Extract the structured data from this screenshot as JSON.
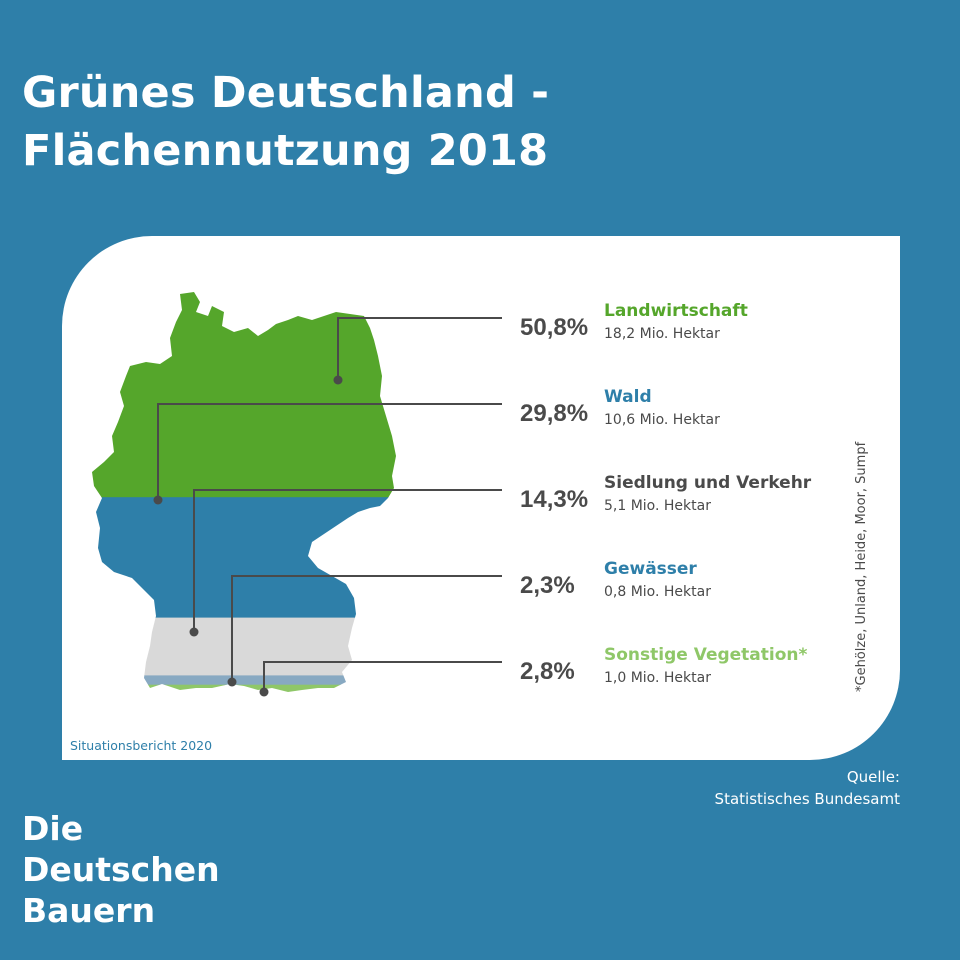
{
  "title": {
    "line1": "Grünes Deutschland -",
    "line2": "Flächennutzung 2018"
  },
  "chart_data": {
    "type": "pie",
    "title": "Grünes Deutschland - Flächennutzung 2018",
    "categories": [
      "Landwirtschaft",
      "Wald",
      "Siedlung und Verkehr",
      "Gewässer",
      "Sonstige Vegetation*"
    ],
    "values": [
      50.8,
      29.8,
      14.3,
      2.3,
      2.8
    ],
    "value_labels": [
      "50,8%",
      "29,8%",
      "14,3%",
      "2,3%",
      "2,8%"
    ],
    "details": [
      "18,2 Mio. Hektar",
      "10,6 Mio. Hektar",
      "5,1 Mio. Hektar",
      "0,8 Mio. Hektar",
      "1,0 Mio. Hektar"
    ],
    "colors": [
      "#55a62b",
      "#2e7fa9",
      "#d9d9d9",
      "#88a9c2",
      "#8fc768"
    ],
    "label_colors": [
      "#55a62b",
      "#2e7fa9",
      "#4a4a4a",
      "#2e7fa9",
      "#8fc768"
    ],
    "footnote": "*Gehölze, Unland, Heide, Moor, Sumpf"
  },
  "report": "Situationsbericht 2020",
  "source": {
    "line1": "Quelle:",
    "line2": "Statistisches Bundesamt"
  },
  "logo": {
    "line1": "Die",
    "line2": "Deutschen",
    "line3": "Bauern"
  }
}
